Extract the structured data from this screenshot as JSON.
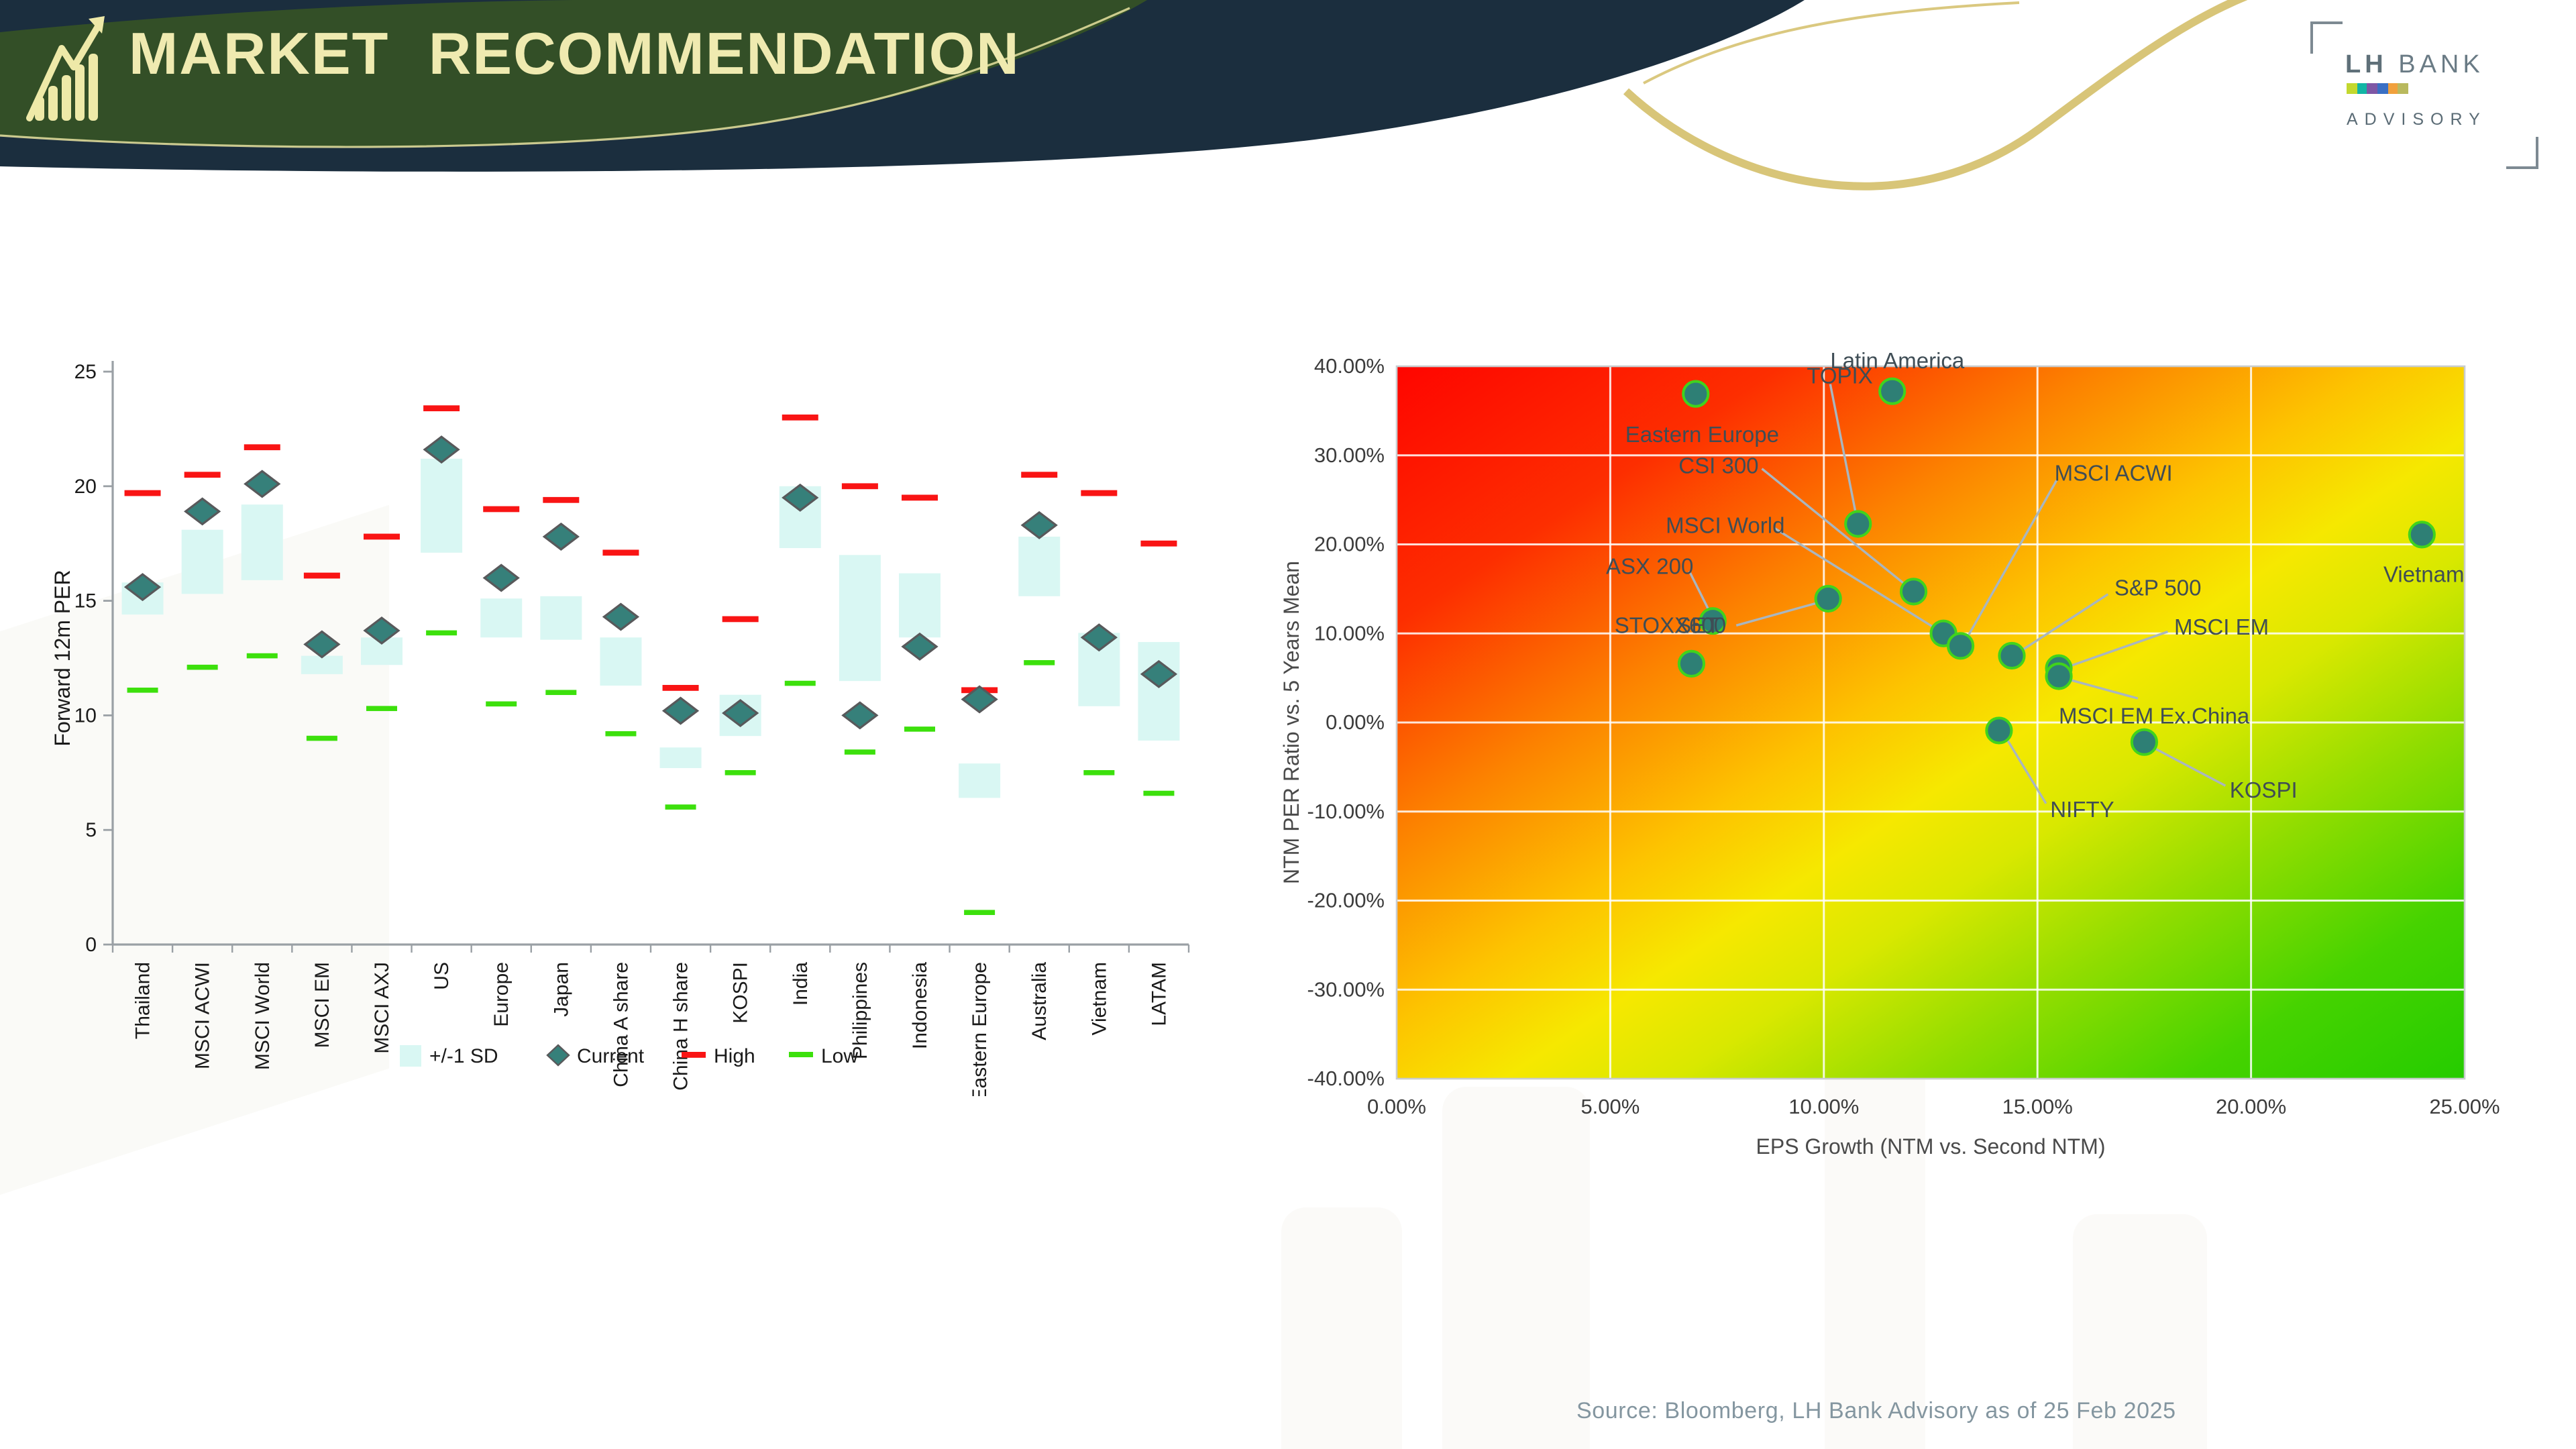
{
  "slide": {
    "title": "MARKET RECOMMENDATION",
    "source_note": "Source: Bloomberg,  LH Bank Advisory  as of 25 Feb 2025",
    "logo": {
      "name_bold": "LH",
      "name_rest": "BANK",
      "subtitle": "ADVISORY",
      "bar_colors": [
        "#c3d82e",
        "#12b5a5",
        "#7e57a5",
        "#3a6fc4",
        "#f0a03c",
        "#b9b95e"
      ]
    },
    "header_colors": {
      "navy": "#1b2e3e",
      "green": "#334f27",
      "title_text": "#efeab0",
      "gold_line": "#d6c271"
    }
  },
  "chart_data": [
    {
      "type": "bar",
      "subtype": "floating-range-bar",
      "title": "",
      "xlabel": "",
      "ylabel": "Forward 12m PER",
      "ylim": [
        0,
        25
      ],
      "yticks": [
        "0",
        "5",
        "10",
        "15",
        "20",
        "25"
      ],
      "grid": false,
      "legend_position": "bottom",
      "legend": [
        "+/-1 SD",
        "Current",
        "High",
        "Low"
      ],
      "categories": [
        "Thailand",
        "MSCI ACWI",
        "MSCI World",
        "MSCI EM",
        "MSCI AXJ",
        "US",
        "Europe",
        "Japan",
        "China A share",
        "China H share",
        "KOSPI",
        "India",
        "Philippines",
        "Indonesia",
        "Eastern Europe",
        "Australia",
        "Vietnam",
        "LATAM"
      ],
      "series": [
        {
          "name": "High",
          "kind": "dash",
          "values": [
            19.7,
            20.5,
            21.7,
            16.1,
            17.8,
            23.4,
            19.0,
            19.4,
            17.1,
            11.2,
            14.2,
            23.0,
            20.0,
            19.5,
            11.1,
            20.5,
            19.7,
            17.5
          ]
        },
        {
          "name": "Low",
          "kind": "dash",
          "values": [
            11.1,
            12.1,
            12.6,
            9.0,
            10.3,
            13.6,
            10.5,
            11.0,
            9.2,
            6.0,
            7.5,
            11.4,
            8.4,
            9.4,
            1.4,
            12.3,
            7.5,
            6.6
          ]
        },
        {
          "name": "Current",
          "kind": "diamond",
          "values": [
            15.6,
            18.9,
            20.1,
            13.1,
            13.7,
            21.6,
            16.0,
            17.8,
            14.3,
            10.2,
            10.1,
            19.5,
            10.0,
            13.0,
            10.7,
            18.3,
            13.4,
            11.8
          ]
        },
        {
          "name": "+/-1 SD top",
          "kind": "box-top",
          "values": [
            15.8,
            18.1,
            19.2,
            12.6,
            13.4,
            21.2,
            15.1,
            15.2,
            13.4,
            8.6,
            10.9,
            20.0,
            17.0,
            16.2,
            7.9,
            17.8,
            13.6,
            13.2
          ]
        },
        {
          "name": "+/-1 SD bottom",
          "kind": "box-bottom",
          "values": [
            14.4,
            15.3,
            15.9,
            11.8,
            12.2,
            17.1,
            13.4,
            13.3,
            11.3,
            7.7,
            9.1,
            17.3,
            11.5,
            13.4,
            6.4,
            15.2,
            10.4,
            8.9
          ]
        }
      ],
      "colors": {
        "box": "#d9f7f3",
        "current": "#36807a",
        "current_stroke": "#58595b",
        "high": "#f91414",
        "low": "#3ce00c",
        "axis": "#9aa0a5",
        "text": "#1a1a1a"
      }
    },
    {
      "type": "scatter",
      "title": "",
      "xlabel": "EPS Growth (NTM vs. Second NTM)",
      "ylabel": "NTM PER Ratio vs. 5 Years Mean",
      "xlim": [
        0,
        25
      ],
      "ylim": [
        -40,
        40
      ],
      "xticks": [
        "0.00%",
        "5.00%",
        "10.00%",
        "15.00%",
        "20.00%",
        "25.00%"
      ],
      "yticks": [
        "40.00%",
        "30.00%",
        "20.00%",
        "10.00%",
        "0.00%",
        "-10.00%",
        "-20.00%",
        "-30.00%",
        "-40.00%"
      ],
      "grid": true,
      "background": "red-yellow-green diagonal gradient (expensive top-left, cheap bottom-right)",
      "gradient_stops": [
        {
          "offset": "0%",
          "color": "#ff0500"
        },
        {
          "offset": "18%",
          "color": "#fd2e00"
        },
        {
          "offset": "33%",
          "color": "#fc8200"
        },
        {
          "offset": "46%",
          "color": "#fdc300"
        },
        {
          "offset": "55%",
          "color": "#f6e800"
        },
        {
          "offset": "63%",
          "color": "#d9e800"
        },
        {
          "offset": "74%",
          "color": "#93dd00"
        },
        {
          "offset": "87%",
          "color": "#46d300"
        },
        {
          "offset": "100%",
          "color": "#25cc00"
        }
      ],
      "points": [
        {
          "label": "Eastern Europe",
          "x": 7.0,
          "y": 36.9,
          "lx": 5.35,
          "ly": 32.3,
          "anchor": "start",
          "leader": null
        },
        {
          "label": "Latin America",
          "x": 11.6,
          "y": 37.2,
          "lx": 10.15,
          "ly": 40.6,
          "anchor": "start",
          "leader": null
        },
        {
          "label": "TOPIX",
          "x": 10.8,
          "y": 22.3,
          "lx": 9.6,
          "ly": 38.9,
          "anchor": "start",
          "leader": [
            10.15,
            38.0,
            10.75,
            23.4
          ]
        },
        {
          "label": "CSI 300",
          "x": 12.1,
          "y": 14.7,
          "lx": 6.6,
          "ly": 28.8,
          "anchor": "start",
          "leader": [
            8.55,
            28.5,
            11.9,
            15.5
          ]
        },
        {
          "label": "MSCI World",
          "x": 12.8,
          "y": 10.0,
          "lx": 6.3,
          "ly": 22.1,
          "anchor": "start",
          "leader": [
            8.85,
            21.8,
            12.6,
            10.6
          ]
        },
        {
          "label": "MSCI ACWI",
          "x": 13.2,
          "y": 8.6,
          "lx": 15.4,
          "ly": 28.0,
          "anchor": "start",
          "leader": [
            15.45,
            27.2,
            13.35,
            9.5
          ]
        },
        {
          "label": "ASX 200",
          "x": 7.4,
          "y": 11.4,
          "lx": 4.9,
          "ly": 17.5,
          "anchor": "start",
          "leader": [
            6.85,
            17.0,
            7.35,
            12.2
          ]
        },
        {
          "label": "STOXX600",
          "x": 6.9,
          "y": 6.6,
          "lx": 5.1,
          "ly": 10.9,
          "anchor": "start",
          "leader": null
        },
        {
          "label": "SET",
          "x": 10.1,
          "y": 13.9,
          "lx": 6.55,
          "ly": 10.9,
          "anchor": "start",
          "leader": [
            7.95,
            10.9,
            9.9,
            13.5
          ]
        },
        {
          "label": "S&P 500",
          "x": 14.4,
          "y": 7.5,
          "lx": 16.8,
          "ly": 15.1,
          "anchor": "start",
          "leader": [
            16.65,
            14.4,
            14.6,
            8.0
          ]
        },
        {
          "label": "MSCI EM",
          "x": 15.5,
          "y": 6.1,
          "lx": 18.2,
          "ly": 10.7,
          "anchor": "start",
          "leader": [
            18.05,
            10.2,
            15.8,
            6.4
          ]
        },
        {
          "label": "MSCI EM Ex.China",
          "x": 15.5,
          "y": 5.2,
          "lx": 15.5,
          "ly": 0.7,
          "anchor": "start",
          "leader": [
            15.75,
            4.8,
            17.35,
            2.7
          ]
        },
        {
          "label": "NIFTY",
          "x": 14.1,
          "y": -0.9,
          "lx": 15.3,
          "ly": -9.8,
          "anchor": "start",
          "leader": [
            14.25,
            -1.6,
            15.2,
            -9.1
          ]
        },
        {
          "label": "KOSPI",
          "x": 17.5,
          "y": -2.2,
          "lx": 19.5,
          "ly": -7.6,
          "anchor": "start",
          "leader": [
            17.7,
            -2.8,
            19.4,
            -7.1
          ]
        },
        {
          "label": "Vietnam",
          "x": 24.0,
          "y": 21.1,
          "lx": 23.1,
          "ly": 16.6,
          "anchor": "start",
          "leader": null
        }
      ],
      "colors": {
        "point_fill": "#2e7f75",
        "point_stroke": "#41d31c",
        "label_text": "#3f4d55",
        "leader": "#a9b6bf",
        "grid": "#ffffff",
        "tick_text": "#3c3c3c",
        "axis_title": "#4a4a4a"
      }
    }
  ]
}
